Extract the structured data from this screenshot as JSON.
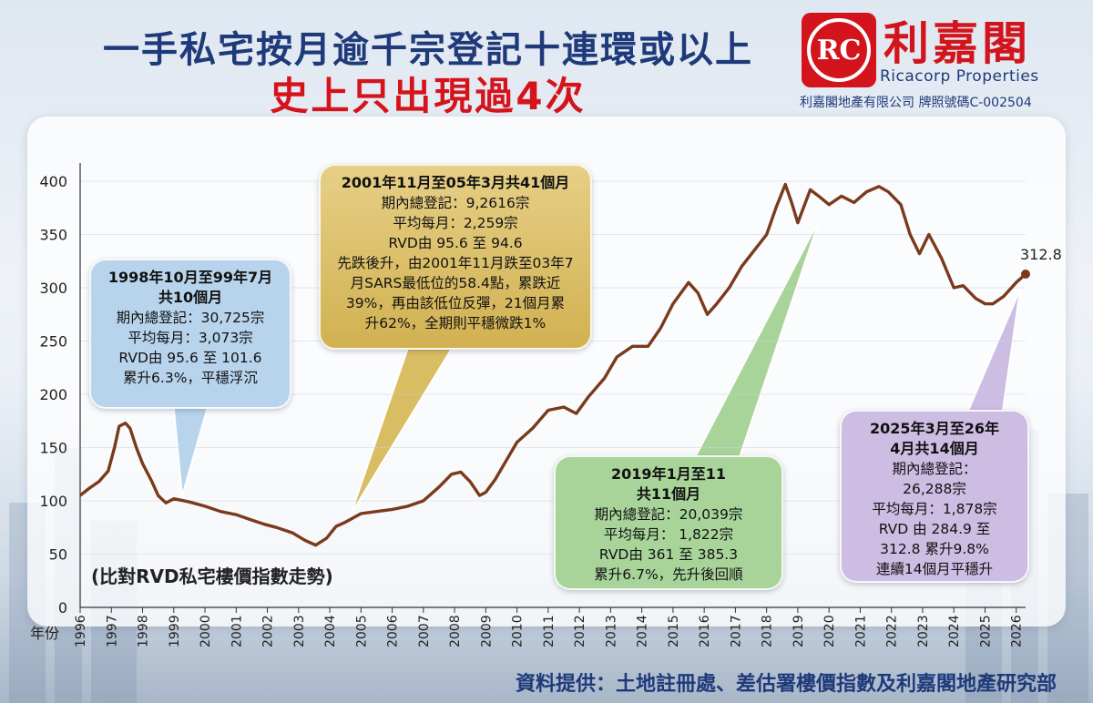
{
  "header": {
    "title_line1": "一手私宅按月逾千宗登記十連環或以上",
    "title_line2": "史上只出現過4次"
  },
  "logo": {
    "mark": "RC",
    "name_cn": "利嘉閣",
    "name_en": "Ricacorp Properties",
    "license": "利嘉閣地產有限公司 牌照號碼C-002504",
    "color": "#d4141c"
  },
  "source_note": "資料提供：土地註冊處、差估署樓價指數及利嘉閣地產研究部",
  "callouts": [
    {
      "id": "c1998",
      "title_lines": [
        "1998年10月至99年7月",
        "共10個月"
      ],
      "lines": [
        "期內總登記：30,725宗",
        "平均每月：3,073宗",
        "RVD由 95.6 至 101.6",
        "累升6.3%，平穩浮沉"
      ],
      "color": "#b8d4ec"
    },
    {
      "id": "c2001",
      "title_lines": [
        "2001年11月至05年3月共41個月"
      ],
      "lines": [
        "期內總登記：9,2616宗",
        "平均每月：2,259宗",
        "RVD由 95.6 至 94.6",
        "先跌後升，由2001年11月跌至03年7",
        "月SARS最低位的58.4點，累跌近",
        "39%，再由該低位反彈，21個月累",
        "升62%，全期則平穩微跌1%"
      ],
      "color": "#d9bd62"
    },
    {
      "id": "c2019",
      "title_lines": [
        "2019年1月至11",
        "共11個月"
      ],
      "lines": [
        "期內總登記：20,039宗",
        "平均每月： 1,822宗",
        "RVD由 361 至 385.3",
        "累升6.7%，先升後回順"
      ],
      "color": "#a8d49a"
    },
    {
      "id": "c2025",
      "title_lines": [
        "2025年3月至26年",
        "4月共14個月"
      ],
      "lines": [
        "期內總登記：",
        "26,288宗",
        "平均每月：1,878宗",
        "RVD 由 284.9 至",
        "312.8  累升9.8%",
        "連續14個月平穩升"
      ],
      "color": "#cdbde2"
    }
  ],
  "chart_data": {
    "type": "line",
    "note": "(比對RVD私宅樓價指數走勢)",
    "xlabel": "年份",
    "ylabel": "",
    "ylim": [
      0,
      400
    ],
    "yticks": [
      0,
      50,
      100,
      150,
      200,
      250,
      300,
      350,
      400
    ],
    "xlim": [
      1996,
      2026.3
    ],
    "xticks": [
      "1996",
      "1997",
      "1998",
      "1999",
      "2000",
      "2001",
      "2002",
      "2003",
      "2004",
      "2005",
      "2006",
      "2007",
      "2008",
      "2009",
      "2010",
      "2011",
      "2012",
      "2013",
      "2014",
      "2015",
      "2016",
      "2017",
      "2018",
      "2019",
      "2020",
      "2021",
      "2022",
      "2023",
      "2024",
      "2025",
      "2026"
    ],
    "line_color": "#7a3a1c",
    "end_label": "312.8",
    "series": [
      {
        "name": "",
        "points": [
          [
            1996.0,
            105
          ],
          [
            1996.3,
            112
          ],
          [
            1996.6,
            118
          ],
          [
            1996.9,
            128
          ],
          [
            1997.1,
            150
          ],
          [
            1997.25,
            170
          ],
          [
            1997.45,
            173
          ],
          [
            1997.6,
            168
          ],
          [
            1997.8,
            150
          ],
          [
            1998.0,
            135
          ],
          [
            1998.3,
            118
          ],
          [
            1998.5,
            105
          ],
          [
            1998.75,
            98
          ],
          [
            1999.0,
            102
          ],
          [
            1999.5,
            99
          ],
          [
            2000.0,
            95
          ],
          [
            2000.5,
            90
          ],
          [
            2001.0,
            87
          ],
          [
            2001.5,
            82
          ],
          [
            2001.9,
            78
          ],
          [
            2002.3,
            75
          ],
          [
            2002.8,
            70
          ],
          [
            2003.2,
            63
          ],
          [
            2003.55,
            58.4
          ],
          [
            2003.9,
            65
          ],
          [
            2004.2,
            76
          ],
          [
            2004.5,
            80
          ],
          [
            2005.0,
            88
          ],
          [
            2005.5,
            90
          ],
          [
            2006.0,
            92
          ],
          [
            2006.5,
            95
          ],
          [
            2007.0,
            100
          ],
          [
            2007.5,
            113
          ],
          [
            2007.9,
            125
          ],
          [
            2008.2,
            127
          ],
          [
            2008.5,
            118
          ],
          [
            2008.8,
            105
          ],
          [
            2009.0,
            108
          ],
          [
            2009.3,
            120
          ],
          [
            2009.7,
            140
          ],
          [
            2010.0,
            155
          ],
          [
            2010.5,
            168
          ],
          [
            2011.0,
            185
          ],
          [
            2011.5,
            188
          ],
          [
            2011.9,
            182
          ],
          [
            2012.3,
            198
          ],
          [
            2012.8,
            215
          ],
          [
            2013.2,
            235
          ],
          [
            2013.7,
            245
          ],
          [
            2014.2,
            245
          ],
          [
            2014.6,
            262
          ],
          [
            2015.0,
            285
          ],
          [
            2015.5,
            305
          ],
          [
            2015.8,
            295
          ],
          [
            2016.1,
            275
          ],
          [
            2016.4,
            285
          ],
          [
            2016.8,
            300
          ],
          [
            2017.2,
            320
          ],
          [
            2017.6,
            335
          ],
          [
            2018.0,
            350
          ],
          [
            2018.3,
            375
          ],
          [
            2018.6,
            397
          ],
          [
            2018.8,
            380
          ],
          [
            2019.0,
            361
          ],
          [
            2019.4,
            392
          ],
          [
            2019.7,
            385.3
          ],
          [
            2020.0,
            378
          ],
          [
            2020.4,
            386
          ],
          [
            2020.8,
            380
          ],
          [
            2021.2,
            390
          ],
          [
            2021.6,
            395
          ],
          [
            2021.9,
            390
          ],
          [
            2022.3,
            378
          ],
          [
            2022.6,
            350
          ],
          [
            2022.9,
            332
          ],
          [
            2023.2,
            350
          ],
          [
            2023.6,
            328
          ],
          [
            2024.0,
            300
          ],
          [
            2024.3,
            302
          ],
          [
            2024.7,
            290
          ],
          [
            2025.0,
            285
          ],
          [
            2025.25,
            284.9
          ],
          [
            2025.6,
            292
          ],
          [
            2026.0,
            305
          ],
          [
            2026.3,
            312.8
          ]
        ]
      }
    ]
  }
}
